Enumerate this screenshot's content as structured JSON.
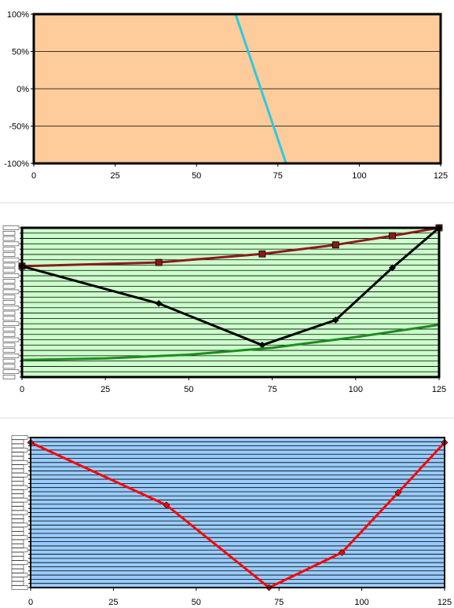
{
  "chart_data": [
    {
      "type": "line",
      "title": "",
      "xlabel": "",
      "ylabel": "",
      "xlim": [
        0,
        125
      ],
      "ylim": [
        -100,
        100
      ],
      "x_ticks": [
        "0",
        "25",
        "50",
        "75",
        "100",
        "125"
      ],
      "y_ticks": [
        "100%",
        "50%",
        "0%",
        "-50%",
        "-100%"
      ],
      "y_tick_values": [
        100,
        50,
        0,
        -50,
        -100
      ],
      "grid": true,
      "background": "#FDCC9A",
      "series": [
        {
          "color": "#2CC9E0",
          "markers": false,
          "x": [
            62,
            77.5
          ],
          "y": [
            100,
            -100
          ]
        }
      ]
    },
    {
      "type": "line",
      "title": "",
      "xlabel": "",
      "ylabel": "",
      "xlim": [
        0,
        125
      ],
      "ylim": [
        -130,
        150
      ],
      "x_ticks": [
        "0",
        "25",
        "50",
        "75",
        "100",
        "125"
      ],
      "y_tick_count": 29,
      "grid": true,
      "background": "#CCFFCC",
      "series": [
        {
          "color": "#8B1A1A",
          "markers": "square",
          "x": [
            0,
            41,
            72,
            94,
            111,
            125
          ],
          "y": [
            78,
            85,
            101,
            118,
            135,
            150
          ]
        },
        {
          "color": "#000000",
          "markers": "diamond",
          "x": [
            0,
            41,
            72,
            94,
            111,
            125
          ],
          "y": [
            78,
            8,
            -70,
            -23,
            75,
            150
          ]
        },
        {
          "color": "#1E8C1E",
          "markers": false,
          "x": [
            0,
            25,
            50,
            75,
            100,
            125
          ],
          "y": [
            -98,
            -95,
            -88,
            -75,
            -55,
            -32
          ]
        }
      ]
    },
    {
      "type": "line",
      "title": "",
      "xlabel": "",
      "ylabel": "",
      "xlim": [
        0,
        125
      ],
      "ylim": [
        0,
        60
      ],
      "x_ticks": [
        "0",
        "25",
        "50",
        "75",
        "100",
        "125"
      ],
      "y_tick_count": 37,
      "grid": true,
      "background": "#99CCFF",
      "series": [
        {
          "color": "#FF0000",
          "markers": "diamond",
          "x": [
            0,
            41,
            72,
            94,
            111,
            125
          ],
          "y": [
            58,
            33,
            0,
            14,
            38,
            58
          ]
        }
      ]
    }
  ]
}
